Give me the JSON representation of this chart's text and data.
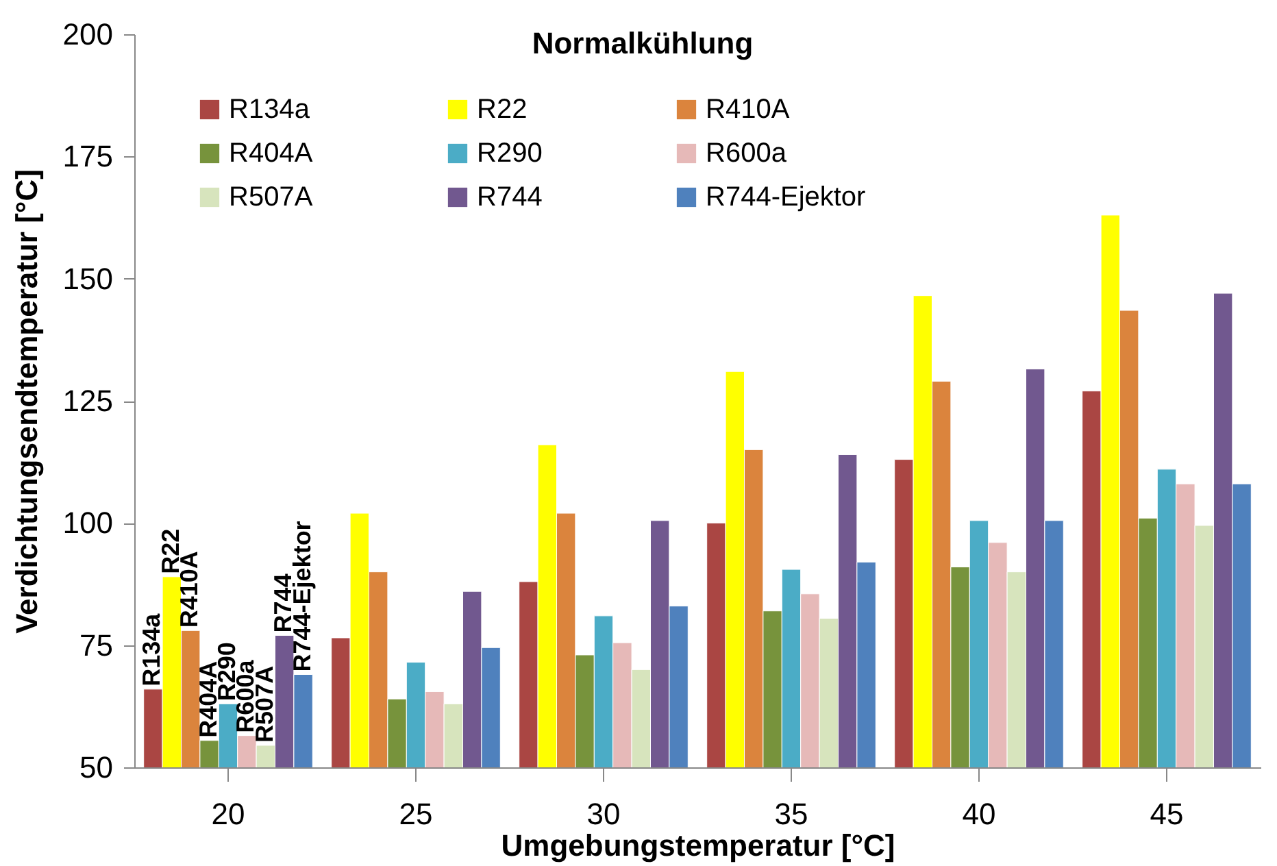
{
  "chart_data": {
    "type": "bar",
    "title": "Normalkühlung",
    "xlabel": "Umgebungstemperatur [°C]",
    "ylabel": "Verdichtungsendtemperatur [°C]",
    "categories": [
      "20",
      "25",
      "30",
      "35",
      "40",
      "45"
    ],
    "series": [
      {
        "name": "R134a",
        "color": "#aa4643",
        "values": [
          66,
          76.5,
          88,
          100,
          113,
          127
        ]
      },
      {
        "name": "R22",
        "color": "#ffff00",
        "values": [
          89,
          102,
          116,
          131,
          146.5,
          163
        ]
      },
      {
        "name": "R410A",
        "color": "#db843d",
        "values": [
          78,
          90,
          102,
          115,
          129,
          143.5
        ]
      },
      {
        "name": "R404A",
        "color": "#77933c",
        "values": [
          55.5,
          64,
          73,
          82,
          91,
          101
        ]
      },
      {
        "name": "R290",
        "color": "#4bacc6",
        "values": [
          63,
          71.5,
          81,
          90.5,
          100.5,
          111
        ]
      },
      {
        "name": "R600a",
        "color": "#e6b9b8",
        "values": [
          56.5,
          65.5,
          75.5,
          85.5,
          96,
          108
        ]
      },
      {
        "name": "R507A",
        "color": "#d7e4bd",
        "values": [
          54.5,
          63,
          70,
          80.5,
          90,
          99.5
        ]
      },
      {
        "name": "R744",
        "color": "#71588f",
        "values": [
          77,
          86,
          100.5,
          114,
          131.5,
          147
        ]
      },
      {
        "name": "R744-Ejektor",
        "color": "#4f81bd",
        "values": [
          69,
          74.5,
          83,
          92,
          100.5,
          108
        ]
      }
    ],
    "ylim": [
      50,
      200
    ],
    "yticks": [
      50,
      75,
      100,
      125,
      150,
      175,
      200
    ],
    "grid": false,
    "legend": "top left",
    "annotations": [
      "R134a",
      "R22",
      "R410A",
      "R404A",
      "R290",
      "R600a",
      "R507A",
      "R744",
      "R744-Ejektor"
    ]
  }
}
